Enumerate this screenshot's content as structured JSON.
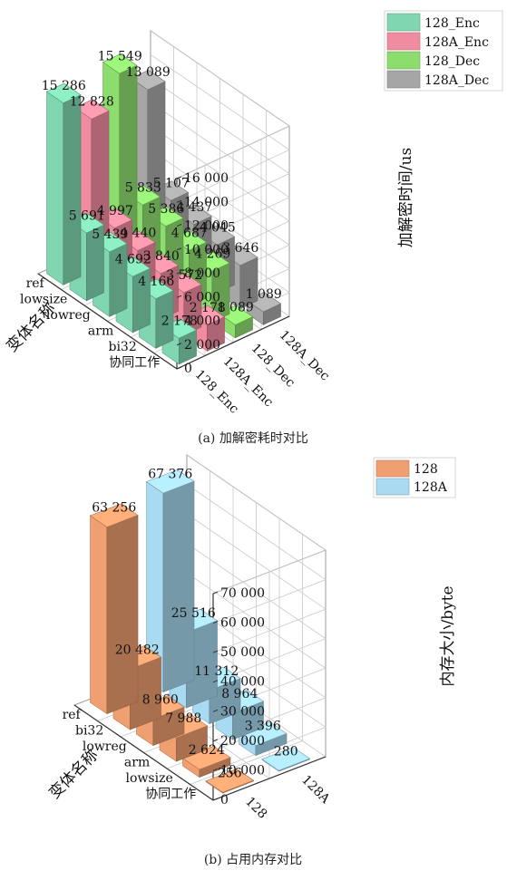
{
  "figure_a": {
    "caption": "(a)  加解密耗时对比",
    "chart_data": {
      "type": "bar",
      "variant": "3d-grouped",
      "categories": [
        "ref",
        "lowsize",
        "lowreg",
        "arm",
        "bi32",
        "协同工作"
      ],
      "series": [
        {
          "name": "128_Enc",
          "values": [
            15286,
            5691,
            5439,
            4692,
            4166,
            2178
          ],
          "color": "#7fd6b0"
        },
        {
          "name": "128A_Enc",
          "values": [
            12828,
            4997,
            4440,
            3840,
            3572,
            2178
          ],
          "color": "#f08ca0"
        },
        {
          "name": "128_Dec",
          "values": [
            15549,
            5833,
            5386,
            4687,
            4269,
            1089
          ],
          "color": "#8cdd6e"
        },
        {
          "name": "128A_Dec",
          "values": [
            13089,
            5107,
            4437,
            4045,
            3646,
            1089
          ],
          "color": "#a6a6a6"
        }
      ],
      "data_labels": [
        [
          "15 286",
          "5 691",
          "5 439",
          "4 692",
          "4 166",
          "2 178"
        ],
        [
          "12 828",
          "4 997",
          "4 440",
          "3 840",
          "3 572",
          "2 178"
        ],
        [
          "15 549",
          "5 833",
          "5 386",
          "4 687",
          "4 269",
          "1 089"
        ],
        [
          "13 089",
          "5 107",
          "4 437",
          "4 045",
          "3 646",
          "1 089"
        ]
      ],
      "y_ticks": [
        "0",
        "2 000",
        "4 000",
        "6 000",
        "8 000",
        "10 000",
        "12 000",
        "14 000",
        "16 000"
      ],
      "ylim": [
        0,
        16000
      ],
      "zlabel": "加解密时间/us",
      "category_axis_label": "变体名称",
      "legend_labels": [
        "128_Enc",
        "128A_Enc",
        "128_Dec",
        "128A_Dec"
      ],
      "legend_position": "top-right",
      "grid": true
    }
  },
  "figure_b": {
    "caption": "(b)  占用内存对比",
    "chart_data": {
      "type": "bar",
      "variant": "3d-grouped",
      "categories": [
        "ref",
        "bi32",
        "lowreg",
        "arm",
        "lowsize",
        "协同工作"
      ],
      "series": [
        {
          "name": "128",
          "values": [
            63256,
            20482,
            8960,
            7988,
            2624,
            256
          ],
          "color": "#f0a070"
        },
        {
          "name": "128A",
          "values": [
            67376,
            25516,
            11312,
            8964,
            3396,
            280
          ],
          "color": "#a8daf2"
        }
      ],
      "data_labels": [
        [
          "63 256",
          "20 482",
          "8 960",
          "7 988",
          "2 624",
          "256"
        ],
        [
          "67 376",
          "25 516",
          "11 312",
          "8 964",
          "3 396",
          "280"
        ]
      ],
      "y_ticks": [
        "0",
        "10 000",
        "20 000",
        "30 000",
        "40 000",
        "50 000",
        "60 000",
        "70 000"
      ],
      "ylim": [
        0,
        70000
      ],
      "zlabel": "内存大小/byte",
      "category_axis_label": "变体名称",
      "legend_labels": [
        "128",
        "128A"
      ],
      "legend_position": "top-right",
      "grid": true
    }
  }
}
